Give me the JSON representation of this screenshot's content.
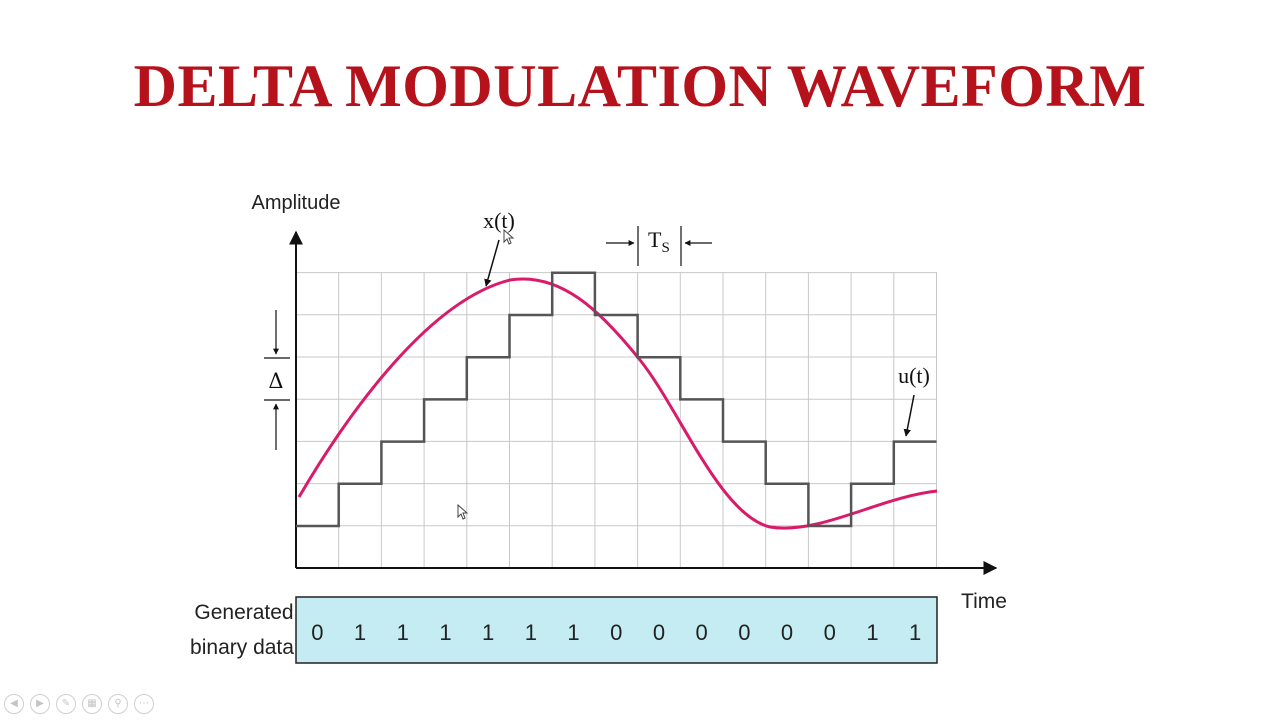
{
  "slide": {
    "title": "DELTA MODULATION WAVEFORM",
    "title_color": "#b5121b"
  },
  "diagram": {
    "y_axis_label": "Amplitude",
    "x_axis_label": "Time",
    "signal_label": "x(t)",
    "staircase_label": "u(t)",
    "step_label": "Δ",
    "period_label_main": "T",
    "period_label_sub": "S",
    "data_row_label_line1": "Generated",
    "data_row_label_line2": "binary data",
    "bits": [
      "0",
      "1",
      "1",
      "1",
      "1",
      "1",
      "1",
      "0",
      "0",
      "0",
      "0",
      "0",
      "0",
      "1",
      "1"
    ],
    "staircase_levels": [
      1,
      2,
      3,
      4,
      5,
      6,
      7,
      6,
      5,
      4,
      3,
      2,
      1,
      2,
      3
    ],
    "colors": {
      "signal": "#d81b6a",
      "staircase": "#555555",
      "grid": "#c8c8c8",
      "data_band": "#c4ecf2",
      "axis": "#111111"
    }
  },
  "nav_icons": [
    "prev-icon",
    "next-icon",
    "pen-icon",
    "slides-icon",
    "zoom-icon",
    "more-icon"
  ]
}
